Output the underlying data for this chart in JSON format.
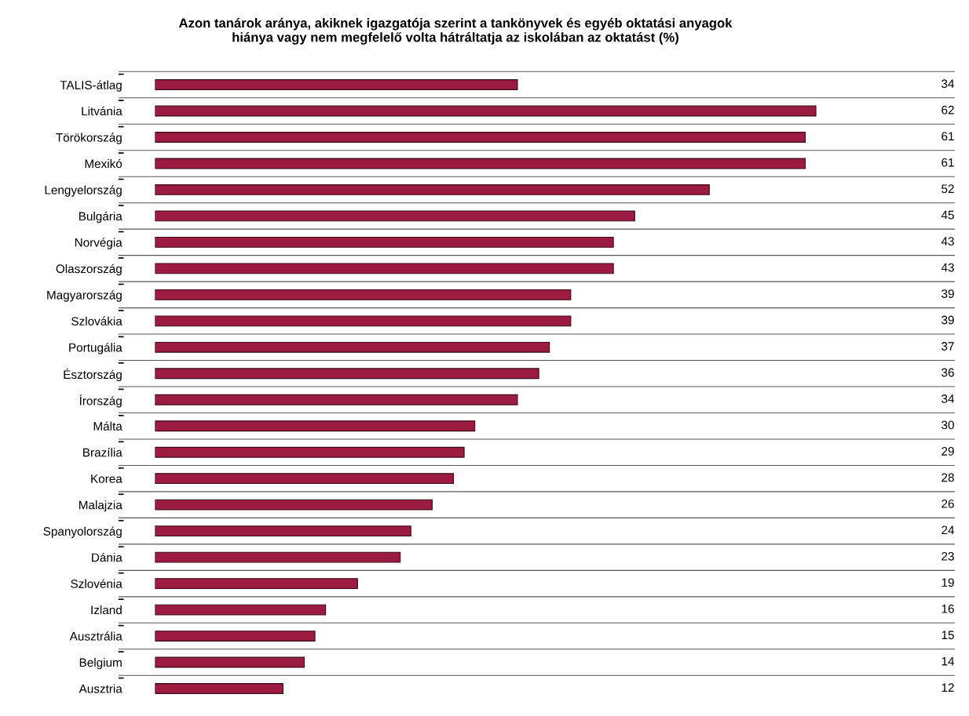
{
  "chart_data": {
    "type": "bar",
    "orientation": "horizontal",
    "title": "Azon tanárok aránya, akiknek igazgatója szerint a tankönyvek és egyéb oktatási anyagok\nhiánya vagy nem megfelelő volta hátráltatja az iskolában az oktatást (%)",
    "categories": [
      "TALIS-átlag",
      "Litvánia",
      "Törökország",
      "Mexikó",
      "Lengyelország",
      "Bulgária",
      "Norvégia",
      "Olaszország",
      "Magyarország",
      "Szlovákia",
      "Portugália",
      "Észtország",
      "Írország",
      "Málta",
      "Brazília",
      "Korea",
      "Malajzia",
      "Spanyolország",
      "Dánia",
      "Szlovénia",
      "Izland",
      "Ausztrália",
      "Belgium",
      "Ausztria"
    ],
    "values": [
      34,
      62,
      61,
      61,
      52,
      45,
      43,
      43,
      39,
      39,
      37,
      36,
      34,
      30,
      29,
      28,
      26,
      24,
      23,
      19,
      16,
      15,
      14,
      12
    ],
    "color": "#9b1c40",
    "xlim": [
      0,
      75
    ],
    "data_labels": true,
    "grid": "y",
    "tick_labels": "y"
  }
}
